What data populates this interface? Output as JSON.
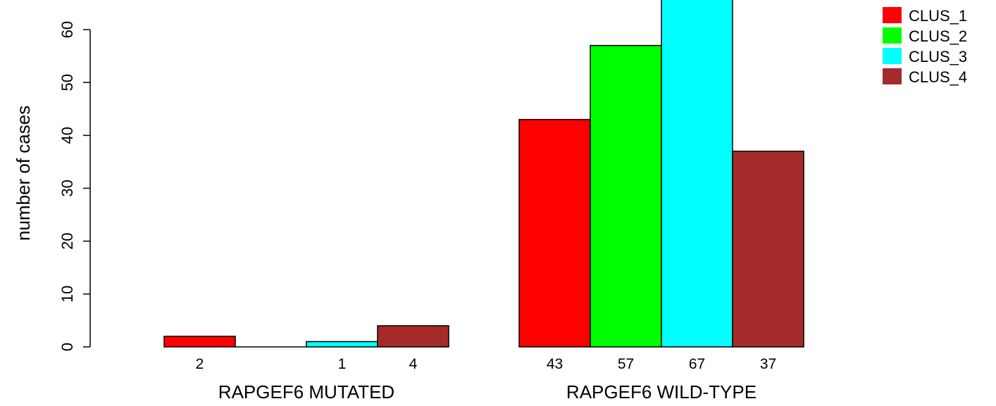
{
  "chart_data": {
    "type": "bar",
    "ylabel": "number of cases",
    "yticks": [
      0,
      10,
      20,
      30,
      40,
      50,
      60
    ],
    "ylim": [
      0,
      67
    ],
    "categories": [
      "RAPGEF6 MUTATED",
      "RAPGEF6 WILD-TYPE"
    ],
    "series": [
      {
        "name": "CLUS_1",
        "color": "#ff0000",
        "values": [
          2,
          43
        ]
      },
      {
        "name": "CLUS_2",
        "color": "#00ff00",
        "values": [
          0,
          57
        ]
      },
      {
        "name": "CLUS_3",
        "color": "#00ffff",
        "values": [
          1,
          67
        ]
      },
      {
        "name": "CLUS_4",
        "color": "#a52a2a",
        "values": [
          4,
          37
        ]
      }
    ],
    "bar_labels": [
      [
        "2",
        "",
        "1",
        "4"
      ],
      [
        "43",
        "57",
        "67",
        "37"
      ]
    ],
    "legend_position": "top-right",
    "grid": false
  }
}
